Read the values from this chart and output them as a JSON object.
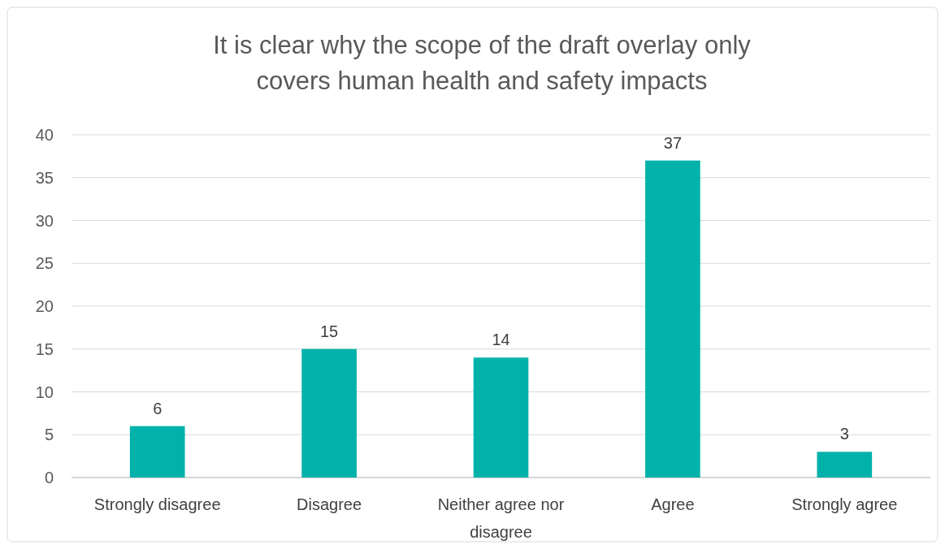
{
  "chart_data": {
    "type": "bar",
    "title": "It is clear why the scope of the draft overlay only covers human health and safety impacts",
    "categories": [
      "Strongly disagree",
      "Disagree",
      "Neither agree nor disagree",
      "Agree",
      "Strongly agree"
    ],
    "values": [
      6,
      15,
      14,
      37,
      3
    ],
    "color": "#00b2a9",
    "ylim": [
      0,
      40
    ],
    "yticks": [
      0,
      5,
      10,
      15,
      20,
      25,
      30,
      35,
      40
    ],
    "grid": "y",
    "data_labels": true
  }
}
